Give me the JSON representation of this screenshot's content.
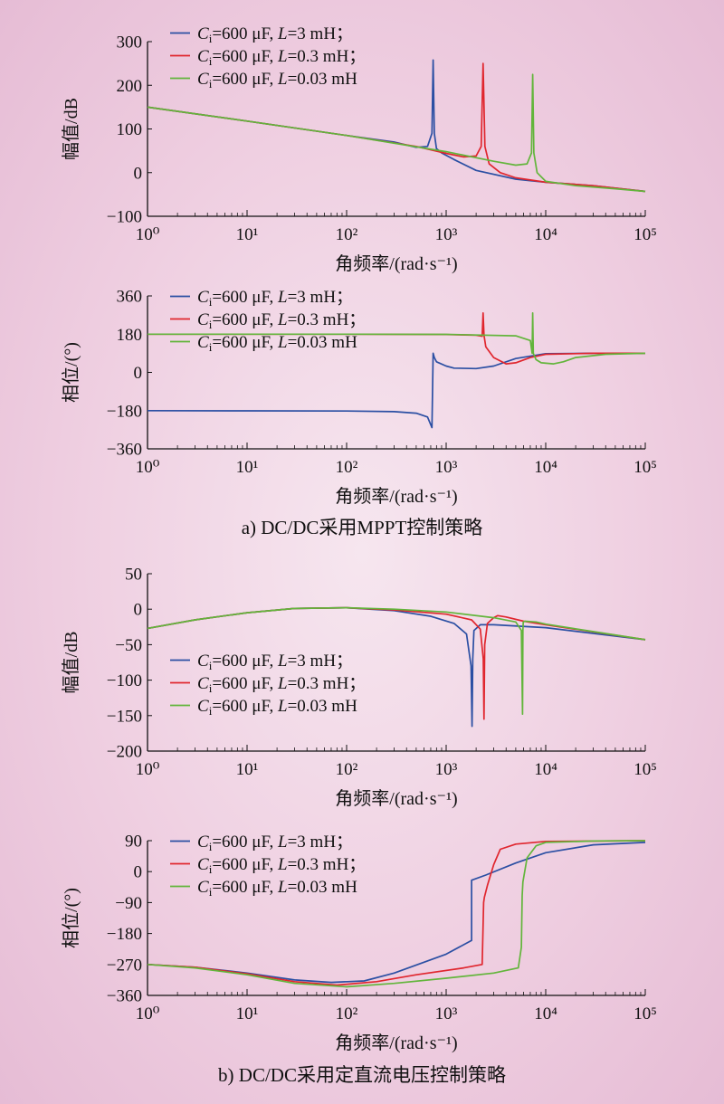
{
  "caption_a": "a) DC/DC采用MPPT控制策略",
  "caption_b": "b) DC/DC采用定直流电压控制策略",
  "colors": {
    "blue": "#2b4fa3",
    "red": "#e0262e",
    "green": "#62b53b"
  },
  "legend": [
    {
      "prefix": "C",
      "sub": "i",
      "mid": "=600 μF, ",
      "var": "L",
      "suffix": "=3 mH；"
    },
    {
      "prefix": "C",
      "sub": "i",
      "mid": "=600 μF, ",
      "var": "L",
      "suffix": "=0.3 mH；"
    },
    {
      "prefix": "C",
      "sub": "i",
      "mid": "=600 μF, ",
      "var": "L",
      "suffix": "=0.03 mH"
    }
  ],
  "xaxis": {
    "label": "角频率/(rad·s⁻¹)",
    "ticks": [
      "10⁰",
      "10¹",
      "10²",
      "10³",
      "10⁴",
      "10⁵"
    ]
  },
  "chart_data": [
    {
      "id": "a-mag",
      "type": "line",
      "xscale": "log",
      "xlim": [
        1,
        100000
      ],
      "ylabel": "幅值/dB",
      "xlabel": "角频率/(rad·s⁻¹)",
      "ylim": [
        -100,
        300
      ],
      "yticks": [
        300,
        200,
        100,
        0,
        -100
      ],
      "legend_position": "top-left",
      "series": [
        {
          "color": "blue",
          "x": [
            1,
            10,
            100,
            300,
            500,
            650,
            720,
            740,
            760,
            800,
            900,
            1200,
            2000,
            5000,
            10000,
            30000,
            100000
          ],
          "y": [
            150,
            118,
            85,
            70,
            58,
            60,
            90,
            258,
            90,
            55,
            45,
            30,
            5,
            -15,
            -22,
            -30,
            -43
          ]
        },
        {
          "color": "red",
          "x": [
            1,
            10,
            100,
            500,
            1000,
            1500,
            2000,
            2250,
            2350,
            2450,
            2700,
            3500,
            5000,
            10000,
            30000,
            100000
          ],
          "y": [
            150,
            118,
            85,
            60,
            44,
            36,
            38,
            60,
            250,
            60,
            20,
            0,
            -12,
            -22,
            -30,
            -43
          ]
        },
        {
          "color": "green",
          "x": [
            1,
            10,
            100,
            1000,
            3000,
            5000,
            6500,
            7200,
            7400,
            7600,
            8200,
            10000,
            20000,
            50000,
            100000
          ],
          "y": [
            150,
            118,
            85,
            48,
            26,
            17,
            20,
            45,
            225,
            45,
            0,
            -20,
            -30,
            -37,
            -43
          ]
        }
      ]
    },
    {
      "id": "a-phase",
      "type": "line",
      "xscale": "log",
      "xlim": [
        1,
        100000
      ],
      "ylabel": "相位/(°)",
      "xlabel": "角频率/(rad·s⁻¹)",
      "ylim": [
        -360,
        360
      ],
      "yticks": [
        360,
        180,
        0,
        -180,
        -360
      ],
      "legend_position": "top-left",
      "series": [
        {
          "color": "blue",
          "x": [
            1,
            10,
            100,
            300,
            500,
            650,
            720,
            740,
            760,
            800,
            1000,
            1200,
            2000,
            3000,
            5000,
            10000,
            30000,
            100000
          ],
          "y": [
            -180,
            -181,
            -182,
            -185,
            -192,
            -210,
            -260,
            90,
            70,
            50,
            30,
            20,
            18,
            30,
            65,
            88,
            90,
            90
          ]
        },
        {
          "color": "red",
          "x": [
            1,
            100,
            1000,
            2000,
            2300,
            2350,
            2400,
            2500,
            3000,
            4000,
            5000,
            7000,
            10000,
            30000,
            100000
          ],
          "y": [
            180,
            180,
            178,
            175,
            170,
            280,
            175,
            120,
            70,
            40,
            45,
            70,
            85,
            90,
            90
          ]
        },
        {
          "color": "green",
          "x": [
            1,
            100,
            1000,
            5000,
            7000,
            7300,
            7400,
            7500,
            8000,
            9000,
            12000,
            15000,
            20000,
            40000,
            100000
          ],
          "y": [
            180,
            180,
            179,
            172,
            150,
            90,
            280,
            90,
            60,
            45,
            40,
            50,
            70,
            85,
            90
          ]
        }
      ]
    },
    {
      "id": "b-mag",
      "type": "line",
      "xscale": "log",
      "xlim": [
        1,
        100000
      ],
      "ylabel": "幅值/dB",
      "xlabel": "角频率/(rad·s⁻¹)",
      "ylim": [
        -200,
        50
      ],
      "yticks": [
        50,
        0,
        -50,
        -100,
        -150,
        -200
      ],
      "legend_position": "bottom-left",
      "series": [
        {
          "color": "blue",
          "x": [
            1,
            3,
            10,
            30,
            100,
            300,
            700,
            1200,
            1600,
            1780,
            1820,
            1850,
            1900,
            2200,
            3000,
            10000,
            100000
          ],
          "y": [
            -27,
            -15,
            -5,
            1,
            2,
            -2,
            -10,
            -20,
            -35,
            -80,
            -165,
            -70,
            -30,
            -22,
            -22,
            -26,
            -43
          ]
        },
        {
          "color": "red",
          "x": [
            1,
            3,
            10,
            30,
            100,
            300,
            1000,
            1800,
            2200,
            2360,
            2400,
            2440,
            2600,
            3000,
            3300,
            4000,
            6000,
            10000,
            100000
          ],
          "y": [
            -27,
            -15,
            -5,
            1,
            2,
            -1,
            -7,
            -15,
            -28,
            -70,
            -155,
            -50,
            -20,
            -12,
            -9,
            -11,
            -17,
            -22,
            -43
          ]
        },
        {
          "color": "green",
          "x": [
            1,
            3,
            10,
            30,
            100,
            300,
            1000,
            3000,
            5000,
            5700,
            5850,
            5900,
            5950,
            6200,
            8000,
            10000,
            100000
          ],
          "y": [
            -27,
            -15,
            -5,
            1,
            2,
            0,
            -4,
            -12,
            -18,
            -30,
            -148,
            -30,
            -18,
            -17,
            -18,
            -21,
            -43
          ]
        }
      ]
    },
    {
      "id": "b-phase",
      "type": "line",
      "xscale": "log",
      "xlim": [
        1,
        100000
      ],
      "ylabel": "相位/(°)",
      "xlabel": "角频率/(rad·s⁻¹)",
      "ylim": [
        -360,
        90
      ],
      "yticks": [
        90,
        0,
        -90,
        -180,
        -270,
        -360
      ],
      "legend_position": "top-left",
      "series": [
        {
          "color": "blue",
          "x": [
            1,
            3,
            10,
            30,
            70,
            150,
            300,
            1000,
            1800,
            1800,
            2500,
            5000,
            10000,
            30000,
            100000
          ],
          "y": [
            -270,
            -278,
            -295,
            -315,
            -322,
            -318,
            -295,
            -240,
            -200,
            -25,
            -10,
            25,
            55,
            78,
            85
          ]
        },
        {
          "color": "red",
          "x": [
            1,
            3,
            10,
            30,
            80,
            200,
            500,
            1500,
            2300,
            2380,
            2420,
            2600,
            3000,
            3500,
            5000,
            10000,
            100000
          ],
          "y": [
            -270,
            -278,
            -297,
            -320,
            -330,
            -320,
            -300,
            -280,
            -270,
            -90,
            -75,
            -40,
            20,
            65,
            80,
            88,
            90
          ]
        },
        {
          "color": "green",
          "x": [
            1,
            3,
            10,
            30,
            100,
            300,
            1000,
            3000,
            5300,
            5700,
            5800,
            5900,
            6500,
            8000,
            10000,
            30000,
            100000
          ],
          "y": [
            -270,
            -280,
            -300,
            -325,
            -335,
            -325,
            -310,
            -295,
            -280,
            -220,
            -70,
            -30,
            40,
            75,
            85,
            89,
            90
          ]
        }
      ]
    }
  ]
}
